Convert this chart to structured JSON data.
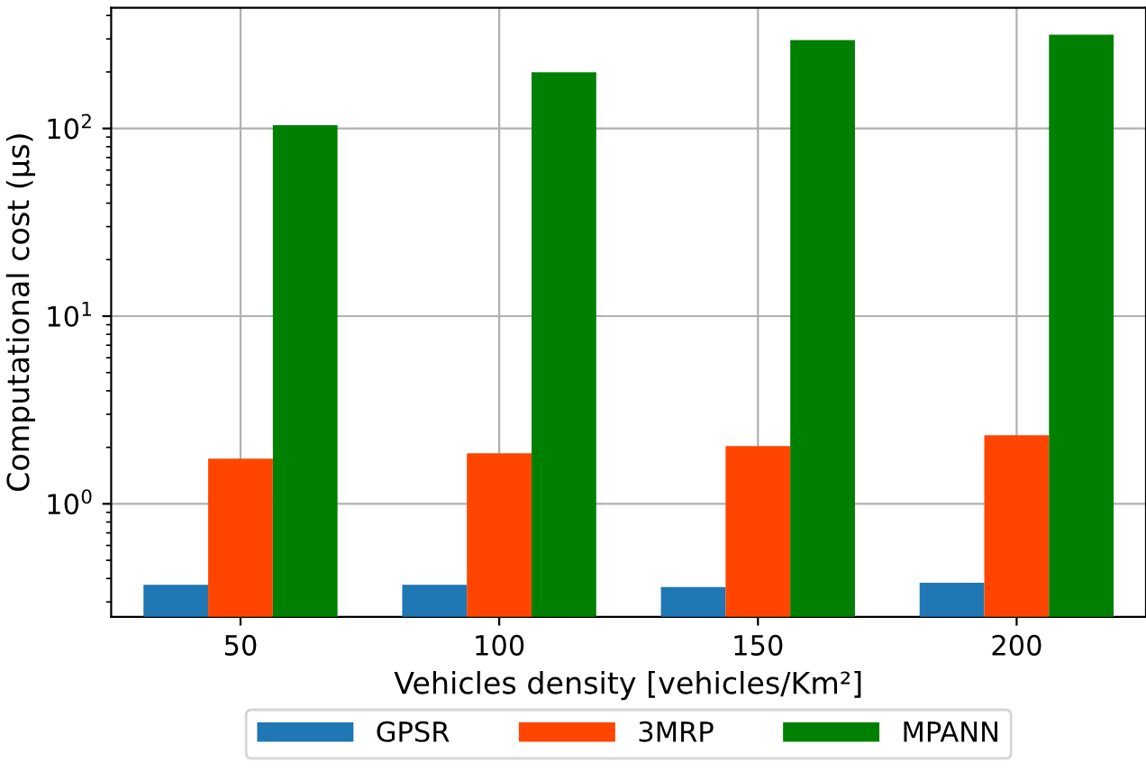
{
  "chart_data": {
    "type": "bar",
    "xlabel": "Vehicles density [vehicles/Km²]",
    "ylabel": "Computational cost (μs)",
    "categories": [
      "50",
      "100",
      "150",
      "200"
    ],
    "series": [
      {
        "name": "GPSR",
        "color": "#1f77b4",
        "values": [
          0.37,
          0.37,
          0.36,
          0.38
        ]
      },
      {
        "name": "3MRP",
        "color": "#ff4500",
        "values": [
          1.74,
          1.86,
          2.03,
          2.32
        ]
      },
      {
        "name": "MPANN",
        "color": "#008000",
        "values": [
          104,
          199,
          296,
          316
        ]
      }
    ],
    "log": "y",
    "ylim": [
      0.25,
      440
    ],
    "yticks": [
      {
        "value": 1,
        "label": "10$^{0}$"
      },
      {
        "value": 10,
        "label": "10$^{1}$"
      },
      {
        "value": 100,
        "label": "10$^{2}$"
      }
    ],
    "grid": true,
    "legend": "bottom"
  }
}
